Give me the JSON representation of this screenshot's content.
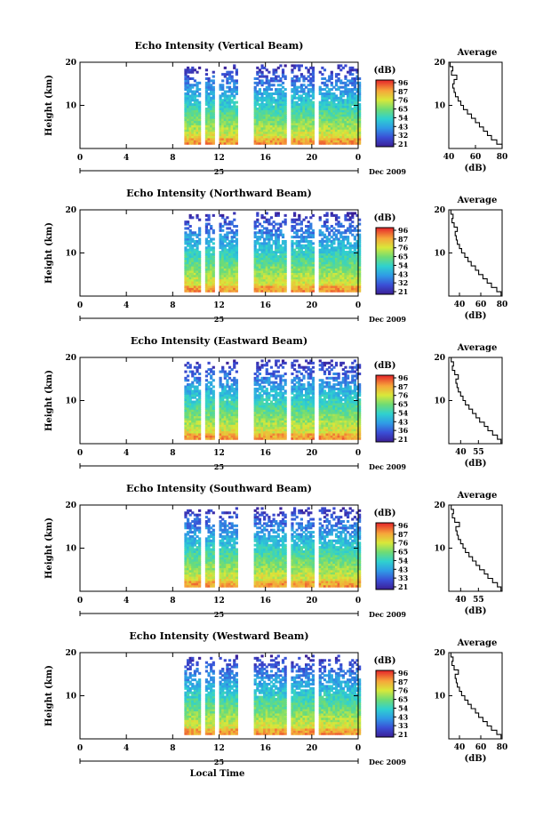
{
  "figure": {
    "xlabel": "Local Time",
    "date_label": "Dec 2009",
    "day_label": "25"
  },
  "chart_data": [
    {
      "type": "heatmap",
      "title": "Echo Intensity (Vertical Beam)",
      "xlabel": "",
      "ylabel": "Height (km)",
      "xlim": [
        0,
        24
      ],
      "ylim": [
        0,
        20
      ],
      "x_ticks": [
        "0",
        "4",
        "8",
        "12",
        "16",
        "20",
        "0"
      ],
      "y_ticks": [
        "10",
        "20"
      ],
      "colorbar": {
        "unit": "(dB)",
        "ticks": [
          "96",
          "87",
          "76",
          "65",
          "54",
          "43",
          "32",
          "21"
        ]
      },
      "data_gaps_hours": [
        [
          0,
          9
        ],
        [
          10.4,
          10.8
        ],
        [
          11.6,
          12.0
        ],
        [
          13.6,
          15.0
        ],
        [
          17.8,
          18.2
        ],
        [
          20.2,
          20.6
        ]
      ],
      "average_profile": {
        "title": "Average",
        "xlabel": "(dB)",
        "x_ticks": [
          "40",
          "60",
          "80"
        ],
        "xlim": [
          40,
          80
        ],
        "y_ticks": [
          "10",
          "20"
        ],
        "height_km": [
          1,
          2,
          3,
          4,
          5,
          6,
          7,
          8,
          9,
          10,
          11,
          12,
          13,
          14,
          15,
          16,
          17,
          18,
          19,
          20
        ],
        "intensity_db": [
          80,
          76,
          72,
          69,
          66,
          63,
          60,
          57,
          54,
          51,
          49,
          47,
          45,
          44,
          43,
          44,
          46,
          42,
          43,
          41
        ]
      }
    },
    {
      "type": "heatmap",
      "title": "Echo Intensity (Northward Beam)",
      "xlabel": "",
      "ylabel": "Height (km)",
      "xlim": [
        0,
        24
      ],
      "ylim": [
        0,
        20
      ],
      "x_ticks": [
        "0",
        "4",
        "8",
        "12",
        "16",
        "20",
        "0"
      ],
      "y_ticks": [
        "10",
        "20"
      ],
      "colorbar": {
        "unit": "(dB)",
        "ticks": [
          "96",
          "87",
          "76",
          "65",
          "54",
          "43",
          "32",
          "21"
        ]
      },
      "data_gaps_hours": [
        [
          0,
          9
        ],
        [
          10.4,
          10.8
        ],
        [
          11.6,
          12.0
        ],
        [
          13.6,
          15.0
        ],
        [
          17.8,
          18.2
        ],
        [
          20.2,
          20.6
        ]
      ],
      "average_profile": {
        "title": "Average",
        "xlabel": "(dB)",
        "x_ticks": [
          "40",
          "60",
          "80"
        ],
        "xlim": [
          30,
          80
        ],
        "y_ticks": [
          "10",
          "20"
        ],
        "height_km": [
          1,
          2,
          3,
          4,
          5,
          6,
          7,
          8,
          9,
          10,
          11,
          12,
          13,
          14,
          15,
          16,
          17,
          18,
          19,
          20
        ],
        "intensity_db": [
          79,
          75,
          70,
          66,
          62,
          58,
          55,
          51,
          48,
          45,
          42,
          40,
          38,
          37,
          36,
          38,
          35,
          33,
          34,
          32
        ]
      }
    },
    {
      "type": "heatmap",
      "title": "Echo Intensity (Eastward Beam)",
      "xlabel": "",
      "ylabel": "Height (km)",
      "xlim": [
        0,
        24
      ],
      "ylim": [
        0,
        20
      ],
      "x_ticks": [
        "0",
        "4",
        "8",
        "12",
        "16",
        "20",
        "0"
      ],
      "y_ticks": [
        "10",
        "20"
      ],
      "colorbar": {
        "unit": "(dB)",
        "ticks": [
          "96",
          "87",
          "76",
          "65",
          "54",
          "43",
          "36",
          "21"
        ]
      },
      "data_gaps_hours": [
        [
          0,
          9
        ],
        [
          10.4,
          10.8
        ],
        [
          11.6,
          12.0
        ],
        [
          13.6,
          15.0
        ],
        [
          17.8,
          18.2
        ],
        [
          20.2,
          20.6
        ]
      ],
      "average_profile": {
        "title": "Average",
        "xlabel": "(dB)",
        "x_ticks": [
          "40",
          "55"
        ],
        "xlim": [
          30,
          75
        ],
        "y_ticks": [
          "10",
          "20"
        ],
        "height_km": [
          1,
          2,
          3,
          4,
          5,
          6,
          7,
          8,
          9,
          10,
          11,
          12,
          13,
          14,
          15,
          16,
          17,
          18,
          19,
          20
        ],
        "intensity_db": [
          74,
          71,
          67,
          63,
          60,
          56,
          53,
          50,
          47,
          44,
          42,
          40,
          38,
          37,
          36,
          38,
          35,
          33,
          34,
          32
        ]
      }
    },
    {
      "type": "heatmap",
      "title": "Echo Intensity (Southward Beam)",
      "xlabel": "",
      "ylabel": "Height (km)",
      "xlim": [
        0,
        24
      ],
      "ylim": [
        0,
        20
      ],
      "x_ticks": [
        "0",
        "4",
        "8",
        "12",
        "16",
        "20",
        "0"
      ],
      "y_ticks": [
        "10",
        "20"
      ],
      "colorbar": {
        "unit": "(dB)",
        "ticks": [
          "96",
          "87",
          "76",
          "65",
          "54",
          "43",
          "33",
          "21"
        ]
      },
      "data_gaps_hours": [
        [
          0,
          9
        ],
        [
          10.4,
          10.8
        ],
        [
          11.6,
          12.0
        ],
        [
          13.6,
          15.0
        ],
        [
          17.8,
          18.2
        ],
        [
          20.2,
          20.6
        ]
      ],
      "average_profile": {
        "title": "Average",
        "xlabel": "(dB)",
        "x_ticks": [
          "40",
          "55"
        ],
        "xlim": [
          30,
          75
        ],
        "y_ticks": [
          "10",
          "20"
        ],
        "height_km": [
          1,
          2,
          3,
          4,
          5,
          6,
          7,
          8,
          9,
          10,
          11,
          12,
          13,
          14,
          15,
          16,
          17,
          18,
          19,
          20
        ],
        "intensity_db": [
          74,
          71,
          67,
          63,
          60,
          56,
          53,
          50,
          47,
          44,
          42,
          40,
          38,
          37,
          36,
          39,
          35,
          33,
          34,
          32
        ]
      }
    },
    {
      "type": "heatmap",
      "title": "Echo Intensity (Westward Beam)",
      "xlabel": "",
      "ylabel": "Height (km)",
      "xlim": [
        0,
        24
      ],
      "ylim": [
        0,
        20
      ],
      "x_ticks": [
        "0",
        "4",
        "8",
        "12",
        "16",
        "20",
        "0"
      ],
      "y_ticks": [
        "10",
        "20"
      ],
      "colorbar": {
        "unit": "(dB)",
        "ticks": [
          "96",
          "87",
          "76",
          "65",
          "54",
          "43",
          "33",
          "21"
        ]
      },
      "data_gaps_hours": [
        [
          0,
          9
        ],
        [
          10.4,
          10.8
        ],
        [
          11.6,
          12.0
        ],
        [
          13.6,
          15.0
        ],
        [
          17.8,
          18.2
        ],
        [
          20.2,
          20.6
        ]
      ],
      "average_profile": {
        "title": "Average",
        "xlabel": "(dB)",
        "x_ticks": [
          "40",
          "60",
          "80"
        ],
        "xlim": [
          30,
          80
        ],
        "y_ticks": [
          "10",
          "20"
        ],
        "height_km": [
          1,
          2,
          3,
          4,
          5,
          6,
          7,
          8,
          9,
          10,
          11,
          12,
          13,
          14,
          15,
          16,
          17,
          18,
          19,
          20
        ],
        "intensity_db": [
          79,
          75,
          70,
          66,
          62,
          58,
          55,
          51,
          48,
          45,
          42,
          40,
          38,
          37,
          36,
          39,
          35,
          33,
          34,
          32
        ]
      }
    }
  ]
}
